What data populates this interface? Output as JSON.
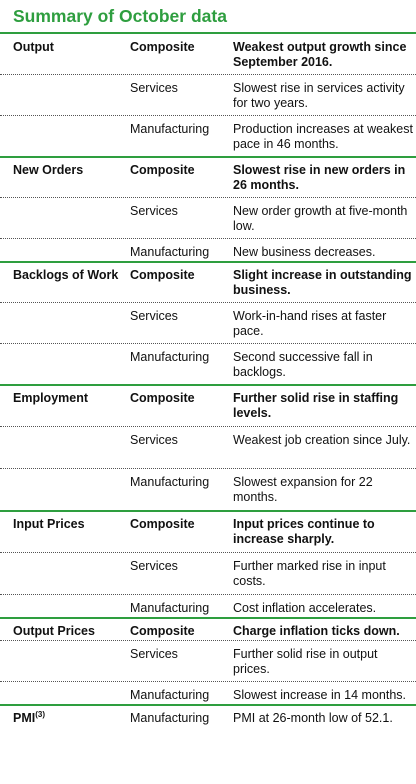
{
  "title": "Summary of October data",
  "colors": {
    "accent": "#2e9e3f"
  },
  "sections": [
    {
      "label": "Output",
      "rows": [
        {
          "sector": "Composite",
          "text": "Weakest output growth since September 2016."
        },
        {
          "sector": "Services",
          "text": "Slowest rise in services activity for two years."
        },
        {
          "sector": "Manufacturing",
          "text": "Production increases at weakest pace in 46 months."
        }
      ]
    },
    {
      "label": "New Orders",
      "rows": [
        {
          "sector": "Composite",
          "text": "Slowest rise in new orders in 26 months."
        },
        {
          "sector": "Services",
          "text": "New order growth at five-month low."
        },
        {
          "sector": "Manufacturing",
          "text": "New business decreases."
        }
      ]
    },
    {
      "label": "Backlogs of Work",
      "rows": [
        {
          "sector": "Composite",
          "text": "Slight increase in outstanding business."
        },
        {
          "sector": "Services",
          "text": "Work-in-hand rises at faster pace."
        },
        {
          "sector": "Manufacturing",
          "text": "Second successive fall in backlogs."
        }
      ]
    },
    {
      "label": "Employment",
      "rows": [
        {
          "sector": "Composite",
          "text": "Further solid rise in staffing levels."
        },
        {
          "sector": "Services",
          "text": "Weakest job creation since July."
        },
        {
          "sector": "Manufacturing",
          "text": "Slowest expansion for 22 months."
        }
      ]
    },
    {
      "label": "Input Prices",
      "rows": [
        {
          "sector": "Composite",
          "text": "Input prices continue to increase sharply."
        },
        {
          "sector": "Services",
          "text": "Further marked rise in input costs."
        },
        {
          "sector": "Manufacturing",
          "text": "Cost inflation accelerates."
        }
      ]
    },
    {
      "label": "Output Prices",
      "rows": [
        {
          "sector": "Composite",
          "text": "Charge inflation ticks down."
        },
        {
          "sector": "Services",
          "text": "Further solid rise in output prices."
        },
        {
          "sector": "Manufacturing",
          "text": "Slowest increase in 14 months."
        }
      ]
    },
    {
      "label": "PMI",
      "label_sup": "(3)",
      "rows": [
        {
          "sector": "Manufacturing",
          "text": "PMI at 26-month low of 52.1."
        }
      ]
    }
  ]
}
